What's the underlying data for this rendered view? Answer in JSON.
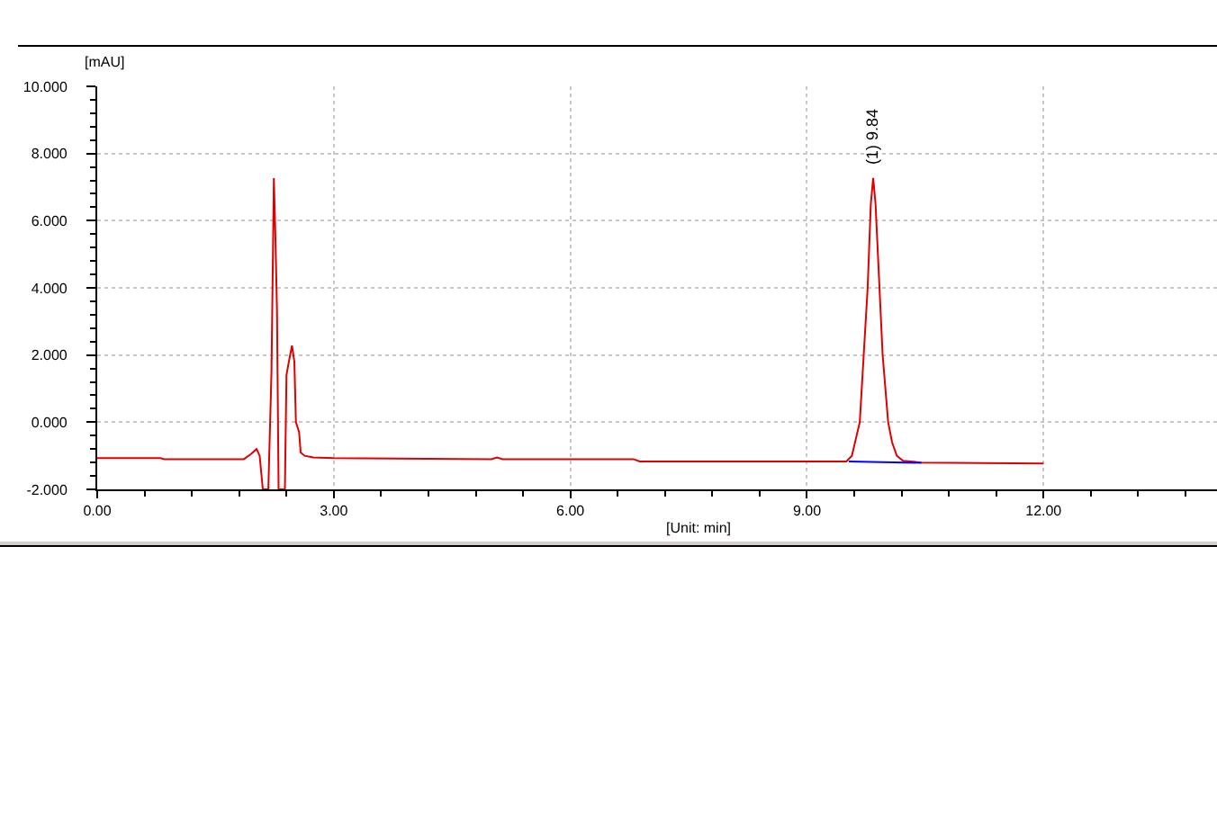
{
  "chart_data": {
    "type": "line",
    "xlabel": "[Unit: min]",
    "ylabel": "[mAU]",
    "annotations": [
      {
        "text": "(1) 9.84",
        "x": 9.84,
        "y": 7.27
      }
    ],
    "xlim": [
      0,
      14.2
    ],
    "ylim": [
      -2,
      10
    ],
    "xticks": [
      {
        "value": 0,
        "label": "0.00"
      },
      {
        "value": 0.6,
        "label": null
      },
      {
        "value": 1.2,
        "label": null
      },
      {
        "value": 1.8,
        "label": null
      },
      {
        "value": 2.4,
        "label": null
      },
      {
        "value": 3,
        "label": "3.00"
      },
      {
        "value": 3.6,
        "label": null
      },
      {
        "value": 4.2,
        "label": null
      },
      {
        "value": 4.8,
        "label": null
      },
      {
        "value": 5.4,
        "label": null
      },
      {
        "value": 6,
        "label": "6.00"
      },
      {
        "value": 6.6,
        "label": null
      },
      {
        "value": 7.2,
        "label": null
      },
      {
        "value": 7.8,
        "label": null
      },
      {
        "value": 8.4,
        "label": null
      },
      {
        "value": 9,
        "label": "9.00"
      },
      {
        "value": 9.6,
        "label": null
      },
      {
        "value": 10.2,
        "label": null
      },
      {
        "value": 10.8,
        "label": null
      },
      {
        "value": 11.4,
        "label": null
      },
      {
        "value": 12,
        "label": "12.00"
      },
      {
        "value": 12.6,
        "label": null
      },
      {
        "value": 13.2,
        "label": null
      },
      {
        "value": 13.8,
        "label": null
      }
    ],
    "yticks": [
      {
        "value": -2,
        "label": "-2.000"
      },
      {
        "value": -1.6,
        "label": null
      },
      {
        "value": -1.2,
        "label": null
      },
      {
        "value": -0.8,
        "label": null
      },
      {
        "value": -0.4,
        "label": null
      },
      {
        "value": 0,
        "label": "0.000"
      },
      {
        "value": 0.4,
        "label": null
      },
      {
        "value": 0.8,
        "label": null
      },
      {
        "value": 1.2,
        "label": null
      },
      {
        "value": 1.6,
        "label": null
      },
      {
        "value": 2,
        "label": "2.000"
      },
      {
        "value": 2.4,
        "label": null
      },
      {
        "value": 2.8,
        "label": null
      },
      {
        "value": 3.2,
        "label": null
      },
      {
        "value": 3.6,
        "label": null
      },
      {
        "value": 4,
        "label": "4.000"
      },
      {
        "value": 4.4,
        "label": null
      },
      {
        "value": 4.8,
        "label": null
      },
      {
        "value": 5.2,
        "label": null
      },
      {
        "value": 5.6,
        "label": null
      },
      {
        "value": 6,
        "label": "6.000"
      },
      {
        "value": 6.4,
        "label": null
      },
      {
        "value": 6.8,
        "label": null
      },
      {
        "value": 7.2,
        "label": null
      },
      {
        "value": 7.6,
        "label": null
      },
      {
        "value": 8,
        "label": "8.000"
      },
      {
        "value": 8.4,
        "label": null
      },
      {
        "value": 8.8,
        "label": null
      },
      {
        "value": 9.2,
        "label": null
      },
      {
        "value": 9.6,
        "label": null
      },
      {
        "value": 10,
        "label": "10.000"
      }
    ],
    "grid": true,
    "line_style": "solid",
    "series": [
      {
        "color": "#e00000",
        "x": [
          0,
          0.8,
          0.85,
          1.86,
          1.95,
          2.02,
          2.06,
          2.1,
          2.17,
          2.21,
          2.23,
          2.24,
          2.26,
          2.28,
          2.3,
          2.38,
          2.4,
          2.43,
          2.47,
          2.5,
          2.52,
          2.56,
          2.58,
          2.63,
          2.74,
          3,
          5.0,
          5.07,
          5.14,
          6.8,
          6.88,
          9,
          9.5,
          9.57,
          9.62,
          9.67,
          9.72,
          9.77,
          9.81,
          9.84,
          9.87,
          9.92,
          9.96,
          10.03,
          10.08,
          10.14,
          10.22,
          10.45,
          12
        ],
        "values": [
          -1.07,
          -1.07,
          -1.1,
          -1.1,
          -0.95,
          -0.8,
          -1.0,
          -2,
          -2,
          1.5,
          5.3,
          7.27,
          5.5,
          3.3,
          -2,
          -2,
          1.4,
          1.8,
          2.28,
          1.8,
          0.0,
          -0.3,
          -0.9,
          -1.0,
          -1.05,
          -1.07,
          -1.1,
          -1.05,
          -1.1,
          -1.1,
          -1.17,
          -1.17,
          -1.17,
          -1.0,
          -0.5,
          0.0,
          2.0,
          4.0,
          6.5,
          7.27,
          6.5,
          4.0,
          2.0,
          0.0,
          -0.6,
          -1.0,
          -1.15,
          -1.2,
          -1.23
        ]
      },
      {
        "color": "#0000ff",
        "x": [
          9.53,
          10.45
        ],
        "values": [
          -1.17,
          -1.21
        ]
      }
    ]
  }
}
